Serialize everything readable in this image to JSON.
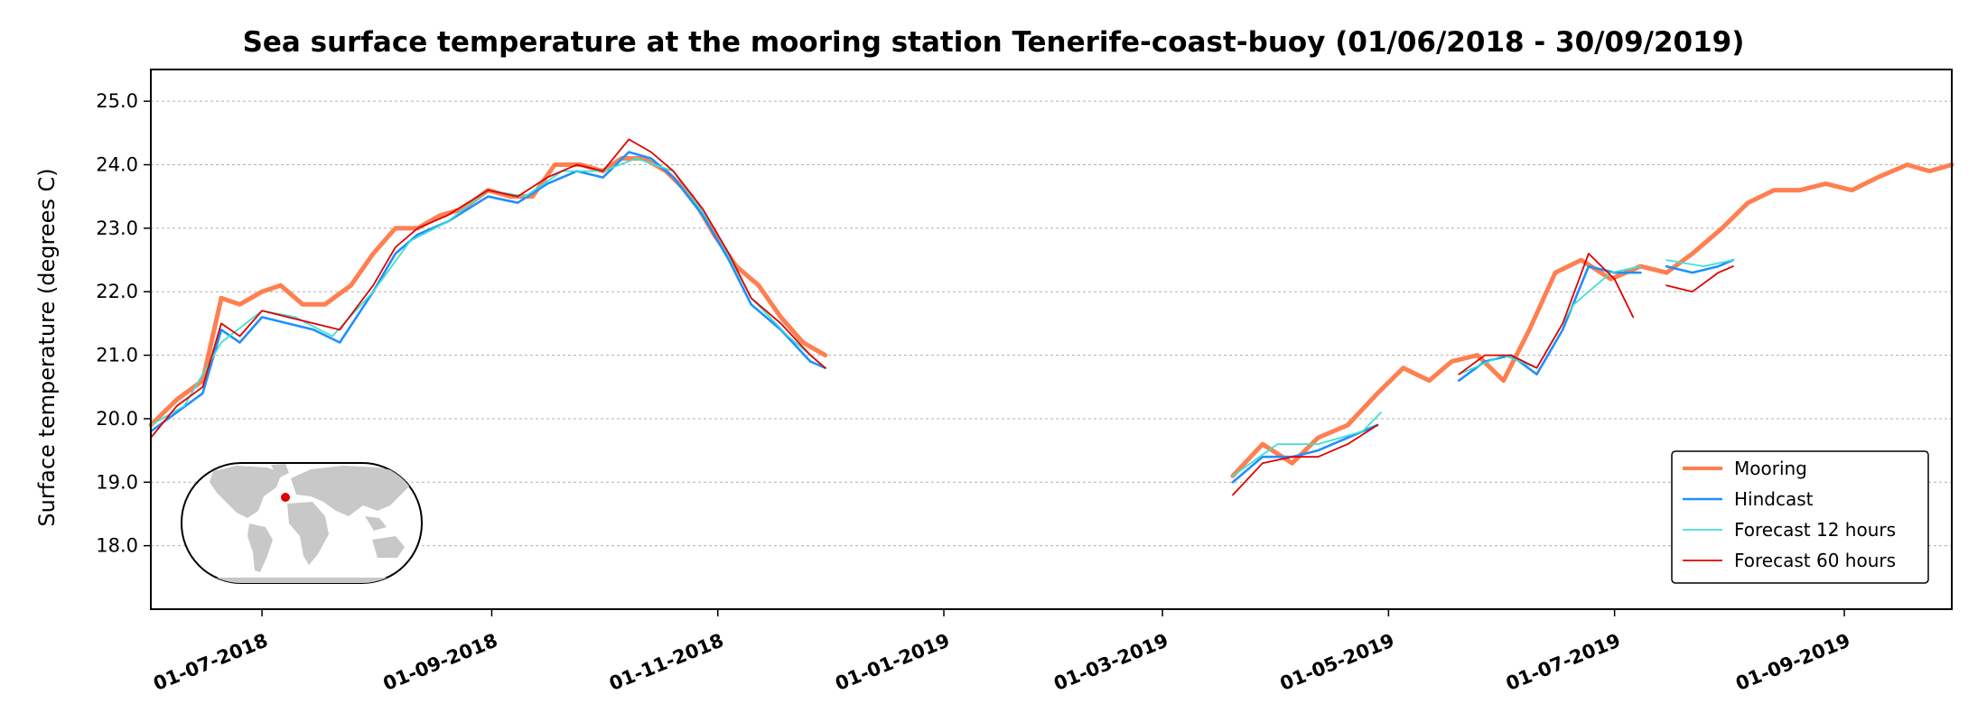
{
  "chart_data": {
    "type": "line",
    "title": "Sea surface temperature at the mooring station Tenerife-coast-buoy (01/06/2018 - 30/09/2019)",
    "xlabel": "",
    "ylabel": "Surface temperature (degrees C)",
    "xlim": [
      "2018-06-01",
      "2019-09-30"
    ],
    "ylim": [
      17.0,
      25.5
    ],
    "yticks": [
      18.0,
      19.0,
      20.0,
      21.0,
      22.0,
      23.0,
      24.0,
      25.0
    ],
    "ytick_labels": [
      "18.0",
      "19.0",
      "20.0",
      "21.0",
      "22.0",
      "23.0",
      "24.0",
      "25.0"
    ],
    "xticks": [
      "2018-07-01",
      "2018-09-01",
      "2018-11-01",
      "2019-01-01",
      "2019-03-01",
      "2019-05-01",
      "2019-07-01",
      "2019-09-01"
    ],
    "xtick_labels": [
      "01-07-2018",
      "01-09-2018",
      "01-11-2018",
      "01-01-2019",
      "01-03-2019",
      "01-05-2019",
      "01-07-2019",
      "01-09-2019"
    ],
    "grid": "horizontal dotted",
    "legend_position": "lower-right",
    "inset_map": {
      "marker_color": "#e00000"
    },
    "series": [
      {
        "name": "Mooring",
        "color": "#ff7f50",
        "points": [
          [
            "2018-06-01",
            19.9
          ],
          [
            "2018-06-08",
            20.3
          ],
          [
            "2018-06-15",
            20.6
          ],
          [
            "2018-06-20",
            21.9
          ],
          [
            "2018-06-25",
            21.8
          ],
          [
            "2018-07-01",
            22.0
          ],
          [
            "2018-07-06",
            22.1
          ],
          [
            "2018-07-12",
            21.8
          ],
          [
            "2018-07-18",
            21.8
          ],
          [
            "2018-07-25",
            22.1
          ],
          [
            "2018-07-31",
            22.6
          ],
          [
            "2018-08-06",
            23.0
          ],
          [
            "2018-08-12",
            23.0
          ],
          [
            "2018-08-18",
            23.2
          ],
          [
            "2018-08-24",
            23.3
          ],
          [
            "2018-08-31",
            23.6
          ],
          [
            "2018-09-06",
            23.5
          ],
          [
            "2018-09-12",
            23.5
          ],
          [
            "2018-09-18",
            24.0
          ],
          [
            "2018-09-25",
            24.0
          ],
          [
            "2018-10-01",
            23.9
          ],
          [
            "2018-10-06",
            24.1
          ],
          [
            "2018-10-12",
            24.1
          ],
          [
            "2018-10-18",
            23.9
          ],
          [
            "2018-10-25",
            23.5
          ],
          [
            "2018-10-31",
            22.9
          ],
          [
            "2018-11-06",
            22.4
          ],
          [
            "2018-11-12",
            22.1
          ],
          [
            "2018-11-18",
            21.6
          ],
          [
            "2018-11-24",
            21.2
          ],
          [
            "2018-11-30",
            21.0
          ],
          null,
          [
            "2019-03-20",
            19.1
          ],
          [
            "2019-03-28",
            19.6
          ],
          [
            "2019-04-05",
            19.3
          ],
          [
            "2019-04-12",
            19.7
          ],
          [
            "2019-04-20",
            19.9
          ],
          [
            "2019-04-28",
            20.4
          ],
          [
            "2019-05-05",
            20.8
          ],
          [
            "2019-05-12",
            20.6
          ],
          [
            "2019-05-18",
            20.9
          ],
          [
            "2019-05-25",
            21.0
          ],
          [
            "2019-06-01",
            20.6
          ],
          [
            "2019-06-08",
            21.4
          ],
          [
            "2019-06-15",
            22.3
          ],
          [
            "2019-06-22",
            22.5
          ],
          [
            "2019-06-30",
            22.2
          ],
          [
            "2019-07-08",
            22.4
          ],
          [
            "2019-07-15",
            22.3
          ],
          [
            "2019-07-22",
            22.6
          ],
          [
            "2019-07-30",
            23.0
          ],
          [
            "2019-08-06",
            23.4
          ],
          [
            "2019-08-13",
            23.6
          ],
          [
            "2019-08-20",
            23.6
          ],
          [
            "2019-08-27",
            23.7
          ],
          [
            "2019-09-03",
            23.6
          ],
          [
            "2019-09-10",
            23.8
          ],
          [
            "2019-09-18",
            24.0
          ],
          [
            "2019-09-24",
            23.9
          ],
          [
            "2019-09-30",
            24.0
          ]
        ]
      },
      {
        "name": "Hindcast",
        "color": "#1e90ff",
        "points": [
          [
            "2018-06-01",
            19.8
          ],
          [
            "2018-06-08",
            20.1
          ],
          [
            "2018-06-15",
            20.4
          ],
          [
            "2018-06-20",
            21.4
          ],
          [
            "2018-06-25",
            21.2
          ],
          [
            "2018-07-01",
            21.6
          ],
          [
            "2018-07-08",
            21.5
          ],
          [
            "2018-07-15",
            21.4
          ],
          [
            "2018-07-22",
            21.2
          ],
          [
            "2018-07-31",
            22.0
          ],
          [
            "2018-08-06",
            22.6
          ],
          [
            "2018-08-12",
            22.9
          ],
          [
            "2018-08-20",
            23.1
          ],
          [
            "2018-08-31",
            23.5
          ],
          [
            "2018-09-08",
            23.4
          ],
          [
            "2018-09-16",
            23.7
          ],
          [
            "2018-09-24",
            23.9
          ],
          [
            "2018-10-01",
            23.8
          ],
          [
            "2018-10-08",
            24.2
          ],
          [
            "2018-10-14",
            24.1
          ],
          [
            "2018-10-20",
            23.8
          ],
          [
            "2018-10-28",
            23.2
          ],
          [
            "2018-11-04",
            22.5
          ],
          [
            "2018-11-10",
            21.8
          ],
          [
            "2018-11-18",
            21.4
          ],
          [
            "2018-11-26",
            20.9
          ],
          [
            "2018-11-30",
            20.8
          ],
          null,
          [
            "2019-03-20",
            19.0
          ],
          [
            "2019-03-28",
            19.4
          ],
          [
            "2019-04-05",
            19.4
          ],
          [
            "2019-04-12",
            19.5
          ],
          [
            "2019-04-20",
            19.7
          ],
          [
            "2019-04-28",
            19.9
          ],
          null,
          [
            "2019-05-20",
            20.6
          ],
          [
            "2019-05-27",
            20.9
          ],
          [
            "2019-06-03",
            21.0
          ],
          [
            "2019-06-10",
            20.7
          ],
          [
            "2019-06-17",
            21.4
          ],
          [
            "2019-06-24",
            22.4
          ],
          [
            "2019-07-01",
            22.3
          ],
          [
            "2019-07-08",
            22.3
          ],
          null,
          [
            "2019-07-15",
            22.4
          ],
          [
            "2019-07-22",
            22.3
          ],
          [
            "2019-07-29",
            22.4
          ],
          [
            "2019-08-02",
            22.5
          ]
        ]
      },
      {
        "name": "Forecast 12 hours",
        "color": "#40e0d0",
        "points": [
          [
            "2018-06-01",
            19.9
          ],
          [
            "2018-06-10",
            20.2
          ],
          [
            "2018-06-20",
            21.2
          ],
          [
            "2018-07-01",
            21.7
          ],
          [
            "2018-07-10",
            21.6
          ],
          [
            "2018-07-20",
            21.3
          ],
          [
            "2018-07-31",
            22.0
          ],
          [
            "2018-08-10",
            22.8
          ],
          [
            "2018-08-20",
            23.1
          ],
          [
            "2018-08-31",
            23.6
          ],
          [
            "2018-09-10",
            23.5
          ],
          [
            "2018-09-20",
            23.9
          ],
          [
            "2018-10-01",
            23.9
          ],
          [
            "2018-10-10",
            24.1
          ],
          [
            "2018-10-20",
            23.9
          ],
          [
            "2018-10-31",
            23.0
          ],
          [
            "2018-11-10",
            21.9
          ],
          [
            "2018-11-20",
            21.3
          ],
          [
            "2018-11-30",
            20.8
          ],
          null,
          [
            "2019-03-20",
            19.1
          ],
          [
            "2019-04-01",
            19.6
          ],
          [
            "2019-04-12",
            19.6
          ],
          [
            "2019-04-24",
            19.8
          ],
          [
            "2019-04-29",
            20.1
          ],
          null,
          [
            "2019-05-20",
            20.7
          ],
          [
            "2019-06-01",
            21.0
          ],
          [
            "2019-06-10",
            20.8
          ],
          [
            "2019-06-20",
            21.8
          ],
          [
            "2019-06-30",
            22.3
          ],
          [
            "2019-07-08",
            22.4
          ],
          null,
          [
            "2019-07-15",
            22.5
          ],
          [
            "2019-07-25",
            22.4
          ],
          [
            "2019-08-02",
            22.5
          ]
        ]
      },
      {
        "name": "Forecast 60 hours",
        "color": "#e00000",
        "points": [
          [
            "2018-06-01",
            19.7
          ],
          [
            "2018-06-08",
            20.2
          ],
          [
            "2018-06-15",
            20.5
          ],
          [
            "2018-06-20",
            21.5
          ],
          [
            "2018-06-25",
            21.3
          ],
          [
            "2018-07-01",
            21.7
          ],
          [
            "2018-07-08",
            21.6
          ],
          [
            "2018-07-15",
            21.5
          ],
          [
            "2018-07-22",
            21.4
          ],
          [
            "2018-07-31",
            22.1
          ],
          [
            "2018-08-06",
            22.7
          ],
          [
            "2018-08-12",
            23.0
          ],
          [
            "2018-08-20",
            23.2
          ],
          [
            "2018-08-31",
            23.6
          ],
          [
            "2018-09-08",
            23.5
          ],
          [
            "2018-09-16",
            23.8
          ],
          [
            "2018-09-24",
            24.0
          ],
          [
            "2018-10-01",
            23.9
          ],
          [
            "2018-10-08",
            24.4
          ],
          [
            "2018-10-14",
            24.2
          ],
          [
            "2018-10-20",
            23.9
          ],
          [
            "2018-10-28",
            23.3
          ],
          [
            "2018-11-04",
            22.6
          ],
          [
            "2018-11-10",
            21.9
          ],
          [
            "2018-11-18",
            21.5
          ],
          [
            "2018-11-26",
            21.0
          ],
          [
            "2018-11-30",
            20.8
          ],
          null,
          [
            "2019-03-20",
            18.8
          ],
          [
            "2019-03-28",
            19.3
          ],
          [
            "2019-04-05",
            19.4
          ],
          [
            "2019-04-12",
            19.4
          ],
          [
            "2019-04-20",
            19.6
          ],
          [
            "2019-04-28",
            19.9
          ],
          null,
          [
            "2019-05-20",
            20.7
          ],
          [
            "2019-05-27",
            21.0
          ],
          [
            "2019-06-03",
            21.0
          ],
          [
            "2019-06-10",
            20.8
          ],
          [
            "2019-06-17",
            21.5
          ],
          [
            "2019-06-24",
            22.6
          ],
          [
            "2019-07-01",
            22.2
          ],
          [
            "2019-07-06",
            21.6
          ],
          null,
          [
            "2019-07-15",
            22.1
          ],
          [
            "2019-07-22",
            22.0
          ],
          [
            "2019-07-29",
            22.3
          ],
          [
            "2019-08-02",
            22.4
          ]
        ]
      }
    ]
  }
}
